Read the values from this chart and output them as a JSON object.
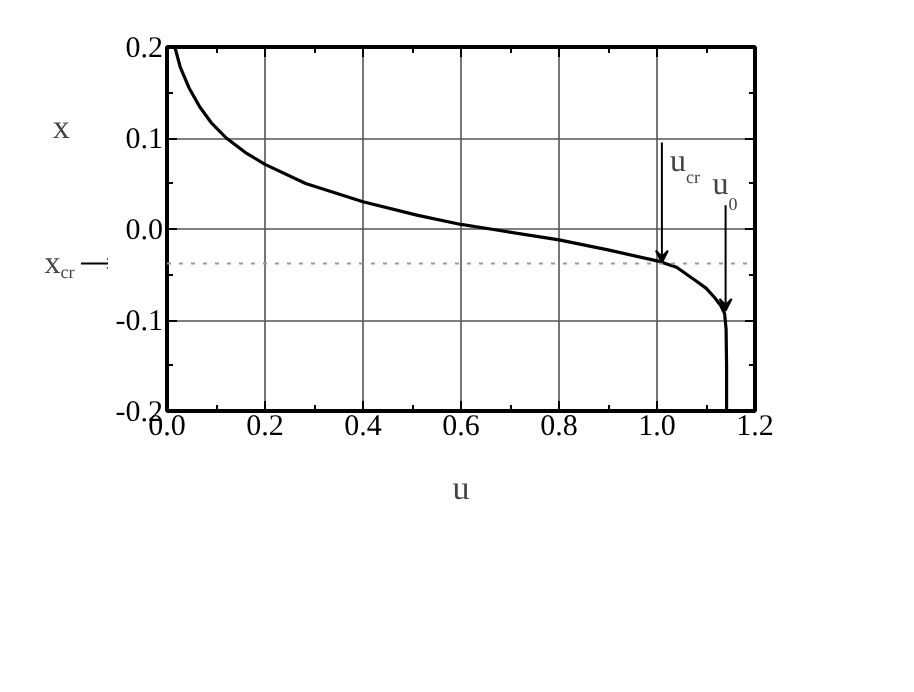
{
  "chart_data": {
    "type": "line",
    "xlabel": "u",
    "ylabel": "x",
    "x": [
      0.016,
      0.027,
      0.045,
      0.067,
      0.09,
      0.121,
      0.16,
      0.2,
      0.283,
      0.4,
      0.512,
      0.6,
      0.66,
      0.8,
      0.9,
      1.0,
      1.04,
      1.077,
      1.1,
      1.117,
      1.13,
      1.138,
      1.141,
      1.142,
      1.142
    ],
    "series": [
      {
        "color": "#000000",
        "values": [
          0.2,
          0.178,
          0.155,
          0.134,
          0.117,
          0.1,
          0.084,
          0.071,
          0.05,
          0.03,
          0.015,
          0.005,
          0.0,
          -0.012,
          -0.023,
          -0.035,
          -0.042,
          -0.056,
          -0.065,
          -0.075,
          -0.084,
          -0.093,
          -0.11,
          -0.15,
          -0.2
        ]
      }
    ],
    "xlim": [
      0.0,
      1.2
    ],
    "ylim": [
      -0.2,
      0.2
    ],
    "xticks": [
      {
        "value": 0.0,
        "label": "0.0"
      },
      0.2,
      0.4,
      0.6,
      0.8,
      {
        "value": 1.0,
        "label": "1.0"
      },
      1.2
    ],
    "yticks": [
      -0.2,
      -0.1,
      {
        "value": 0.0,
        "label": "0.0"
      },
      0.1,
      0.2
    ],
    "grid": true,
    "marker": "none",
    "line_style": "solid",
    "ref_lines": [
      {
        "axis": "y",
        "value": -0.038,
        "label": "x$_{cr}$",
        "color": "#9a9a9a",
        "line_style": "dotted"
      }
    ],
    "annotations": [
      {
        "text": "u$_{cr}$",
        "x": 1.01,
        "y": -0.037
      },
      {
        "text": "u$_{0}$",
        "x": 1.14,
        "y": -0.09
      }
    ]
  }
}
